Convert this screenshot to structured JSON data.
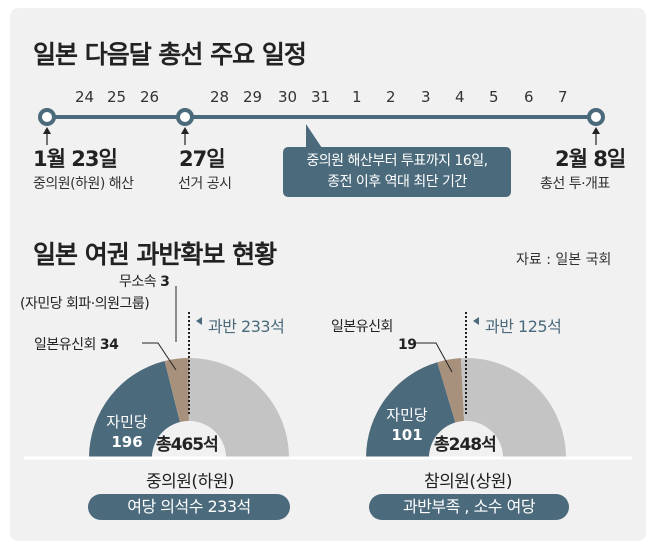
{
  "timeline": {
    "title": "일본 다음달 총선 주요 일정",
    "ticks": [
      "24",
      "25",
      "26",
      "28",
      "29",
      "30",
      "31",
      "1",
      "2",
      "3",
      "4",
      "5",
      "6",
      "7"
    ],
    "events": [
      {
        "date": "1월 23일",
        "desc": "중의원(하원) 해산"
      },
      {
        "date": "27일",
        "desc": "선거 공시"
      },
      {
        "date": "2월 8일",
        "desc": "총선 투·개표"
      }
    ],
    "callout": [
      "중의원 해산부터 투표까지 16일,",
      "종전 이후 역대 최단 기간"
    ]
  },
  "seats": {
    "title": "일본 여권 과반확보 현황",
    "source": "자료 : 일본 국회"
  },
  "colors": {
    "ruling": "#4b6a7c",
    "partner": "#a7917c",
    "other": "#c4c4c4",
    "line": "#4b6a7c"
  },
  "chart_data": [
    {
      "type": "pie",
      "style": "half-donut",
      "house": "중의원(하원)",
      "total": "총465석",
      "majority_line": "과반 233석",
      "majority": 233,
      "slices": [
        {
          "label": "자민당",
          "value": 196
        },
        {
          "label": "일본유신회",
          "value": 34
        },
        {
          "label": "무소속",
          "value": 3,
          "note": "(자민당 회파·의원그룹)"
        },
        {
          "label": "",
          "value": 232
        }
      ],
      "summary": "여당 의석수 233석"
    },
    {
      "type": "pie",
      "style": "half-donut",
      "house": "참의원(상원)",
      "total": "총248석",
      "majority_line": "과반 125석",
      "majority": 125,
      "slices": [
        {
          "label": "자민당",
          "value": 101
        },
        {
          "label": "일본유신회",
          "value": 19
        },
        {
          "label": "",
          "value": 128
        }
      ],
      "summary": "과반부족 , 소수 여당"
    }
  ]
}
